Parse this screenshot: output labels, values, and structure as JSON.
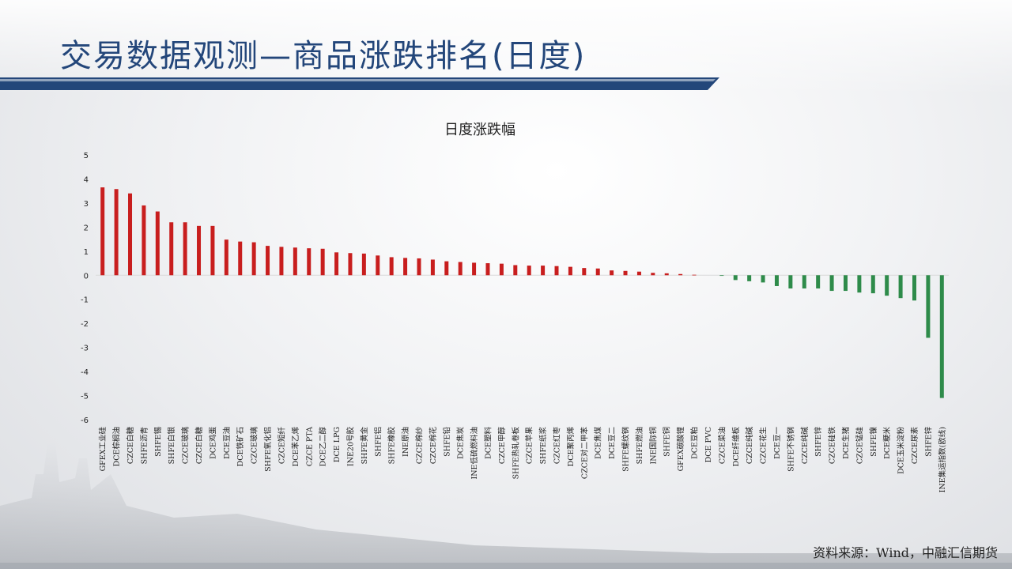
{
  "header": {
    "title": "交易数据观测—商品涨跌排名(日度)"
  },
  "footer": {
    "source": "资料来源：Wind，中融汇信期货"
  },
  "colors": {
    "up": "#c81e1e",
    "down": "#2e8b4a",
    "title": "#23467a"
  },
  "chart_data": {
    "type": "bar",
    "title": "日度涨跌幅",
    "xlabel": "",
    "ylabel": "",
    "ylim": [
      -6,
      5
    ],
    "yticks": [
      5,
      4,
      3,
      2,
      1,
      0,
      -1,
      -2,
      -3,
      -4,
      -5,
      -6
    ],
    "grid": false,
    "legend": "none",
    "categories": [
      "GFEX工业硅",
      "DCE棕榈油",
      "CZCE白糖",
      "SHFE沥青",
      "SHFE锡",
      "SHFE白银",
      "CZCE玻璃",
      "CZCE白糖",
      "DCE鸡蛋",
      "DCE豆油",
      "DCE铁矿石",
      "CZCE玻璃",
      "SHFE氧化铝",
      "CZCE短纤",
      "DCE苯乙烯",
      "CZCE PTA",
      "DCE乙二醇",
      "DCE LPG",
      "INE20号胶",
      "SHFE黄金",
      "SHFE铝",
      "SHFE橡胶",
      "INE原油",
      "CZCE棉纱",
      "CZCE棉花",
      "SHFE铅",
      "DCE焦炭",
      "INE低硫燃料油",
      "DCE塑料",
      "CZCE甲醇",
      "SHFE热轧卷板",
      "CZCE苹果",
      "SHFE纸浆",
      "CZCE红枣",
      "DCE聚丙烯",
      "CZCE对二甲苯",
      "DCE焦煤",
      "DCE豆二",
      "SHFE螺纹钢",
      "SHFE燃油",
      "INE国际铜",
      "SHFE铜",
      "GFEX碳酸锂",
      "DCE豆粕",
      "DCE PVC",
      "CZCE菜油",
      "DCE纤维板",
      "CZCE纯碱",
      "CZCE花生",
      "DCE豆一",
      "SHFE不锈钢",
      "CZCE纯碱",
      "SHFE锌",
      "CZCE硅铁",
      "DCE生猪",
      "CZCE锰硅",
      "SHFE镍",
      "DCE粳米",
      "DCE玉米淀粉",
      "CZCE尿素",
      "SHFE锌",
      "INE集运指数(欧线)"
    ],
    "values": [
      3.65,
      3.58,
      3.4,
      2.9,
      2.65,
      2.2,
      2.2,
      2.05,
      2.05,
      1.48,
      1.4,
      1.37,
      1.22,
      1.18,
      1.15,
      1.12,
      1.1,
      0.95,
      0.92,
      0.9,
      0.82,
      0.75,
      0.72,
      0.7,
      0.65,
      0.58,
      0.55,
      0.52,
      0.5,
      0.48,
      0.42,
      0.4,
      0.4,
      0.38,
      0.35,
      0.3,
      0.28,
      0.2,
      0.18,
      0.15,
      0.1,
      0.08,
      0.05,
      0.02,
      0.0,
      -0.02,
      -0.2,
      -0.25,
      -0.3,
      -0.45,
      -0.55,
      -0.55,
      -0.55,
      -0.65,
      -0.65,
      -0.72,
      -0.75,
      -0.85,
      -0.95,
      -1.05,
      -2.6,
      -5.1
    ]
  }
}
